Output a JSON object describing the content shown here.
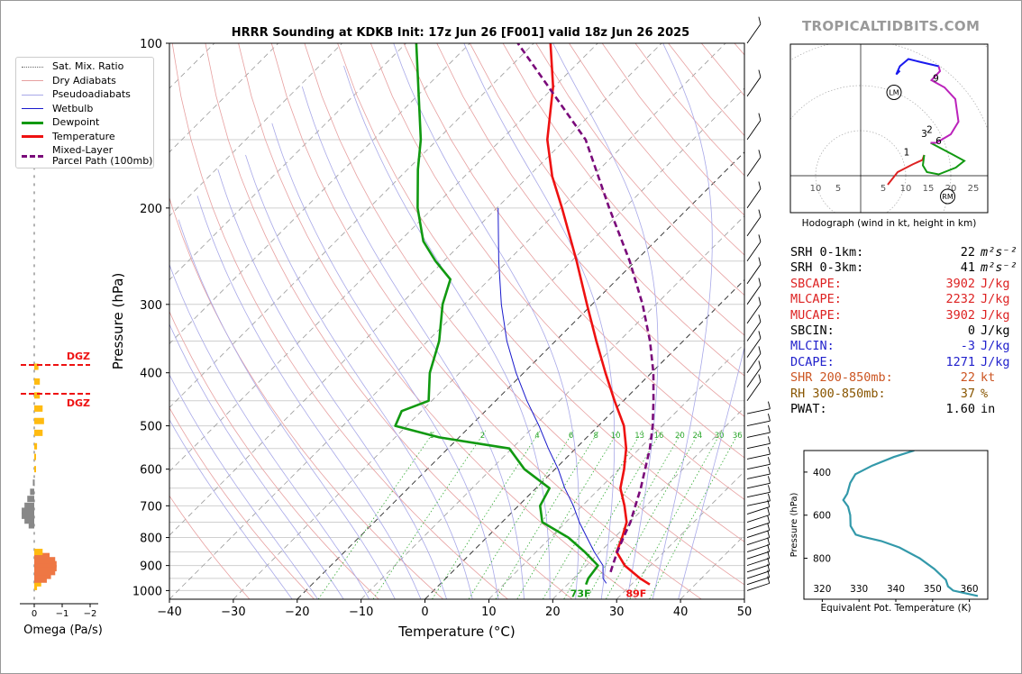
{
  "header": {
    "title": "HRRR Sounding at KDKB Init: 17z Jun 26 [F001] valid 18z Jun 26 2025",
    "brand": "TROPICALTIDBITS.COM"
  },
  "colors": {
    "temperature": "#ee1111",
    "dewpoint": "#119911",
    "parcel": "#7a0a7a",
    "wetbulb": "#1a1acc",
    "dry_adiabat": "#e7a0a0",
    "pseudoadiabat": "#a8a8e8",
    "mixing_ratio": "#33aa33",
    "omega_up": "#ffbb11",
    "omega_down": "#888888",
    "omega_strong": "#ee7744",
    "hodo_0_1": "#dd2222",
    "hodo_1_3": "#119911",
    "hodo_3_6": "#bb22bb",
    "hodo_6_9": "#1a1aee",
    "theta_e": "#3399aa",
    "stats_red": "#dd2222",
    "stats_blue": "#2222cc",
    "stats_orange": "#cc5522",
    "stats_brown": "#885500"
  },
  "legend": {
    "items": [
      {
        "label": "Sat. Mix. Ratio",
        "style": "dotted",
        "color": "#666666"
      },
      {
        "label": "Dry Adiabats",
        "style": "solid-thin",
        "color": "#e7a0a0"
      },
      {
        "label": "Pseudoadiabats",
        "style": "solid-thin",
        "color": "#a8a8e8"
      },
      {
        "label": "Wetbulb",
        "style": "solid-thin",
        "color": "#1a1acc"
      },
      {
        "label": "Dewpoint",
        "style": "solid",
        "color": "#119911"
      },
      {
        "label": "Temperature",
        "style": "solid",
        "color": "#ee1111"
      },
      {
        "label": "Mixed-Layer\nParcel Path (100mb)",
        "style": "dashed",
        "color": "#7a0a7a"
      }
    ]
  },
  "stats": [
    {
      "label": "SRH 0-1km:",
      "value": "22",
      "unit": "m²s⁻²",
      "color": "#000000"
    },
    {
      "label": "SRH 0-3km:",
      "value": "41",
      "unit": "m²s⁻²",
      "color": "#000000"
    },
    {
      "label": "SBCAPE:",
      "value": "3902",
      "unit": "J/kg",
      "color": "#dd2222"
    },
    {
      "label": "MLCAPE:",
      "value": "2232",
      "unit": "J/kg",
      "color": "#dd2222"
    },
    {
      "label": "MUCAPE:",
      "value": "3902",
      "unit": "J/kg",
      "color": "#dd2222"
    },
    {
      "label": "SBCIN:",
      "value": "0",
      "unit": "J/kg",
      "color": "#000000"
    },
    {
      "label": "MLCIN:",
      "value": "-3",
      "unit": "J/kg",
      "color": "#2222cc"
    },
    {
      "label": "DCAPE:",
      "value": "1271",
      "unit": "J/kg",
      "color": "#2222cc"
    },
    {
      "label": "SHR 200-850mb:",
      "value": "22",
      "unit": "kt",
      "color": "#cc5522"
    },
    {
      "label": "RH 300-850mb:",
      "value": "37",
      "unit": "%",
      "color": "#885500"
    },
    {
      "label": "PWAT:",
      "value": "1.60",
      "unit": "in",
      "color": "#000000"
    }
  ],
  "chart_data": [
    {
      "type": "line",
      "title": "HRRR Sounding at KDKB Init: 17z Jun 26 [F001] valid 18z Jun 26 2025",
      "xlabel": "Temperature (°C)",
      "ylabel": "Pressure (hPa)",
      "xlim": [
        -40,
        50
      ],
      "ylim": [
        1037,
        100
      ],
      "y_scale": "log",
      "skew": "skew-T",
      "x_ticks": [
        -40,
        -30,
        -20,
        -10,
        0,
        10,
        20,
        30,
        40,
        50
      ],
      "y_ticks": [
        100,
        200,
        300,
        400,
        500,
        600,
        700,
        800,
        900,
        1000
      ],
      "grid": true,
      "legend_position": "top-left outside",
      "mixing_ratio_labels": [
        "1",
        "2",
        "4",
        "6",
        "8",
        "10",
        "13",
        "16",
        "20",
        "24",
        "30",
        "36"
      ],
      "series": [
        {
          "name": "Temperature",
          "points": [
            [
              975,
              32.9
            ],
            [
              950,
              30.4
            ],
            [
              900,
              26.0
            ],
            [
              850,
              22.6
            ],
            [
              800,
              21.2
            ],
            [
              750,
              19.5
            ],
            [
              700,
              16.6
            ],
            [
              650,
              13.2
            ],
            [
              600,
              10.8
            ],
            [
              550,
              7.9
            ],
            [
              500,
              4.0
            ],
            [
              450,
              -1.4
            ],
            [
              400,
              -7.2
            ],
            [
              350,
              -13.6
            ],
            [
              300,
              -20.8
            ],
            [
              250,
              -29.2
            ],
            [
              200,
              -39.8
            ],
            [
              175,
              -46.3
            ],
            [
              150,
              -52.8
            ],
            [
              120,
              -60.2
            ],
            [
              100,
              -67.4
            ]
          ]
        },
        {
          "name": "Dewpoint",
          "points": [
            [
              975,
              22.9
            ],
            [
              950,
              22.3
            ],
            [
              900,
              21.8
            ],
            [
              850,
              17.6
            ],
            [
              800,
              12.8
            ],
            [
              750,
              6.3
            ],
            [
              700,
              3.4
            ],
            [
              650,
              2.1
            ],
            [
              600,
              -4.8
            ],
            [
              550,
              -10.4
            ],
            [
              525,
              -23.1
            ],
            [
              500,
              -31.8
            ],
            [
              470,
              -33.1
            ],
            [
              450,
              -30.5
            ],
            [
              400,
              -34.7
            ],
            [
              350,
              -38.2
            ],
            [
              300,
              -43.4
            ],
            [
              270,
              -46.1
            ],
            [
              250,
              -51.3
            ],
            [
              230,
              -56.3
            ],
            [
              200,
              -62.4
            ],
            [
              170,
              -68.4
            ],
            [
              150,
              -72.6
            ],
            [
              100,
              -88.4
            ]
          ]
        },
        {
          "name": "Wetbulb",
          "points": [
            [
              970,
              25.9
            ],
            [
              950,
              24.6
            ],
            [
              900,
              22.6
            ],
            [
              850,
              19.1
            ],
            [
              800,
              15.7
            ],
            [
              750,
              12.1
            ],
            [
              700,
              8.6
            ],
            [
              650,
              4.5
            ],
            [
              600,
              0.5
            ],
            [
              550,
              -4.3
            ],
            [
              500,
              -9.3
            ],
            [
              450,
              -15.1
            ],
            [
              400,
              -21.2
            ],
            [
              350,
              -27.6
            ],
            [
              300,
              -34.2
            ],
            [
              250,
              -41.4
            ],
            [
              200,
              -49.8
            ]
          ]
        },
        {
          "name": "Mixed-Layer Parcel Path (100mb)",
          "points": [
            [
              925,
              24.8
            ],
            [
              900,
              24.1
            ],
            [
              850,
              22.7
            ],
            [
              800,
              21.4
            ],
            [
              750,
              20.1
            ],
            [
              700,
              18.3
            ],
            [
              650,
              16.4
            ],
            [
              600,
              14.1
            ],
            [
              550,
              11.6
            ],
            [
              500,
              8.5
            ],
            [
              450,
              4.7
            ],
            [
              400,
              0.3
            ],
            [
              350,
              -5.2
            ],
            [
              300,
              -12.1
            ],
            [
              250,
              -20.9
            ],
            [
              200,
              -32.4
            ],
            [
              150,
              -46.8
            ],
            [
              100,
              -72.5
            ]
          ]
        }
      ],
      "annotations": [
        {
          "text": "73F",
          "at_pressure": 1000,
          "at_temperature": 23.0
        },
        {
          "text": "89F",
          "at_pressure": 1000,
          "at_temperature": 31.7
        }
      ]
    },
    {
      "type": "bar",
      "xlabel": "Omega (Pa/s)",
      "x_ticks": [
        "0",
        "−1",
        "−2"
      ],
      "annotations": [
        "DGZ",
        "DGZ"
      ],
      "values_by_pressure": [
        [
          985,
          -0.1
        ],
        [
          970,
          -0.25
        ],
        [
          955,
          -0.45
        ],
        [
          940,
          -0.6
        ],
        [
          925,
          -0.75
        ],
        [
          910,
          -0.8
        ],
        [
          895,
          -0.8
        ],
        [
          880,
          -0.75
        ],
        [
          865,
          -0.55
        ],
        [
          850,
          -0.3
        ],
        [
          760,
          0.2
        ],
        [
          745,
          0.35
        ],
        [
          730,
          0.45
        ],
        [
          715,
          0.45
        ],
        [
          700,
          0.35
        ],
        [
          680,
          0.25
        ],
        [
          660,
          0.15
        ],
        [
          635,
          0.05
        ],
        [
          600,
          -0.05
        ],
        [
          570,
          -0.05
        ],
        [
          545,
          -0.1
        ],
        [
          515,
          -0.3
        ],
        [
          490,
          -0.35
        ],
        [
          465,
          -0.3
        ],
        [
          440,
          -0.2
        ],
        [
          415,
          -0.2
        ],
        [
          390,
          -0.15
        ]
      ]
    },
    {
      "type": "line",
      "title": "Hodograph (wind in kt, height in km)",
      "ring_labels": [
        "10",
        "5",
        "5",
        "10",
        "15",
        "20",
        "25"
      ],
      "height_markers": [
        "1",
        "2",
        "3",
        "6",
        "9"
      ],
      "storm_markers": [
        "LM",
        "RM"
      ],
      "series": [
        {
          "name": "0-1 km",
          "points": [
            [
              6.0,
              -2.0
            ],
            [
              8.2,
              0.8
            ],
            [
              11.5,
              2.5
            ],
            [
              13.7,
              3.5
            ],
            [
              14.1,
              4.6
            ]
          ]
        },
        {
          "name": "1-3 km",
          "points": [
            [
              14.1,
              4.6
            ],
            [
              13.8,
              2.3
            ],
            [
              14.7,
              0.8
            ],
            [
              17.3,
              0.3
            ],
            [
              21.1,
              1.8
            ],
            [
              23.0,
              3.3
            ],
            [
              20.6,
              4.6
            ],
            [
              15.5,
              7.3
            ]
          ]
        },
        {
          "name": "3-6 km",
          "points": [
            [
              15.5,
              7.3
            ],
            [
              16.8,
              7.3
            ],
            [
              20.0,
              9.2
            ],
            [
              21.7,
              12.0
            ],
            [
              21.0,
              17.0
            ],
            [
              18.6,
              19.6
            ],
            [
              15.7,
              21.2
            ],
            [
              17.6,
              23.2
            ],
            [
              17.3,
              24.3
            ]
          ]
        },
        {
          "name": "6-9 km",
          "points": [
            [
              17.3,
              24.3
            ],
            [
              13.0,
              25.3
            ],
            [
              10.6,
              25.9
            ],
            [
              8.7,
              24.3
            ],
            [
              7.9,
              22.5
            ],
            [
              8.7,
              23.3
            ]
          ]
        }
      ],
      "storm_motion": [
        {
          "name": "LM",
          "u": 7.4,
          "v": 18.5
        },
        {
          "name": "RM",
          "u": 19.3,
          "v": -4.6
        }
      ]
    },
    {
      "type": "line",
      "xlabel": "Equivalent Pot. Temperature (K)",
      "ylabel": "Pressure (hPa)",
      "xlim": [
        315,
        365
      ],
      "ylim": [
        990,
        300
      ],
      "x_ticks": [
        320,
        330,
        340,
        350,
        360
      ],
      "y_ticks": [
        400,
        600,
        800
      ],
      "series": [
        {
          "name": "Theta-E",
          "values": [
            [
              300,
              345.0
            ],
            [
              330,
              339.4
            ],
            [
              370,
              333.6
            ],
            [
              410,
              329.0
            ],
            [
              450,
              327.6
            ],
            [
              500,
              326.8
            ],
            [
              530,
              325.7
            ],
            [
              560,
              327.0
            ],
            [
              600,
              327.6
            ],
            [
              650,
              327.7
            ],
            [
              690,
              329.1
            ],
            [
              700,
              331.0
            ],
            [
              720,
              336.0
            ],
            [
              750,
              341.0
            ],
            [
              800,
              346.5
            ],
            [
              850,
              350.5
            ],
            [
              900,
              353.6
            ],
            [
              930,
              354.2
            ],
            [
              950,
              355.6
            ],
            [
              975,
              362.3
            ]
          ]
        }
      ]
    }
  ]
}
